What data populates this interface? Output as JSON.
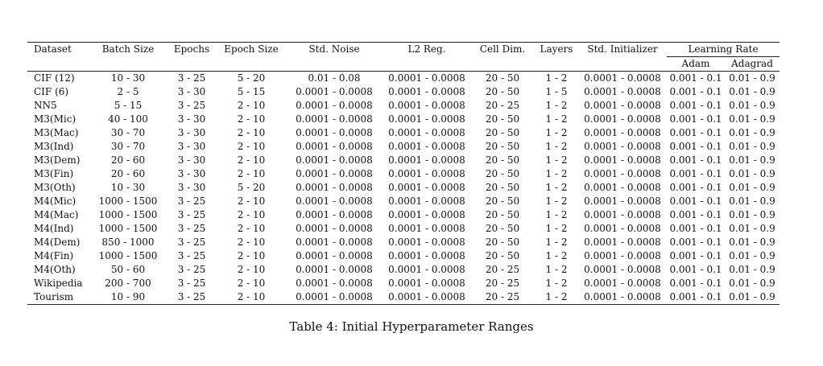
{
  "table": {
    "headers": {
      "dataset": "Dataset",
      "batch_size": "Batch Size",
      "epochs": "Epochs",
      "epoch_size": "Epoch Size",
      "std_noise": "Std. Noise",
      "l2_reg": "L2 Reg.",
      "cell_dim": "Cell Dim.",
      "layers": "Layers",
      "std_initializer": "Std. Initializer",
      "learning_rate": "Learning Rate",
      "adam": "Adam",
      "adagrad": "Adagrad"
    },
    "rows": [
      [
        "CIF (12)",
        "10 - 30",
        "3 - 25",
        "5 - 20",
        "0.01 - 0.08",
        "0.0001 - 0.0008",
        "20 - 50",
        "1 - 2",
        "0.0001 - 0.0008",
        "0.001 - 0.1",
        "0.01 - 0.9"
      ],
      [
        "CIF (6)",
        "2 - 5",
        "3 - 30",
        "5 - 15",
        "0.0001 - 0.0008",
        "0.0001 - 0.0008",
        "20 - 50",
        "1 - 5",
        "0.0001 - 0.0008",
        "0.001 - 0.1",
        "0.01 - 0.9"
      ],
      [
        "NN5",
        "5 - 15",
        "3 - 25",
        "2 - 10",
        "0.0001 - 0.0008",
        "0.0001 - 0.0008",
        "20 - 25",
        "1 - 2",
        "0.0001 - 0.0008",
        "0.001 - 0.1",
        "0.01 - 0.9"
      ],
      [
        "M3(Mic)",
        "40 - 100",
        "3 - 30",
        "2 - 10",
        "0.0001 - 0.0008",
        "0.0001 - 0.0008",
        "20 - 50",
        "1 - 2",
        "0.0001 - 0.0008",
        "0.001 - 0.1",
        "0.01 - 0.9"
      ],
      [
        "M3(Mac)",
        "30 - 70",
        "3 - 30",
        "2 - 10",
        "0.0001 - 0.0008",
        "0.0001 - 0.0008",
        "20 - 50",
        "1 - 2",
        "0.0001 - 0.0008",
        "0.001 - 0.1",
        "0.01 - 0.9"
      ],
      [
        "M3(Ind)",
        "30 - 70",
        "3 - 30",
        "2 - 10",
        "0.0001 - 0.0008",
        "0.0001 - 0.0008",
        "20 - 50",
        "1 - 2",
        "0.0001 - 0.0008",
        "0.001 - 0.1",
        "0.01 - 0.9"
      ],
      [
        "M3(Dem)",
        "20 - 60",
        "3 - 30",
        "2 - 10",
        "0.0001 - 0.0008",
        "0.0001 - 0.0008",
        "20 - 50",
        "1 - 2",
        "0.0001 - 0.0008",
        "0.001 - 0.1",
        "0.01 - 0.9"
      ],
      [
        "M3(Fin)",
        "20 - 60",
        "3 - 30",
        "2 - 10",
        "0.0001 - 0.0008",
        "0.0001 - 0.0008",
        "20 - 50",
        "1 - 2",
        "0.0001 - 0.0008",
        "0.001 - 0.1",
        "0.01 - 0.9"
      ],
      [
        "M3(Oth)",
        "10 - 30",
        "3 - 30",
        "5 - 20",
        "0.0001 - 0.0008",
        "0.0001 - 0.0008",
        "20 - 50",
        "1 - 2",
        "0.0001 - 0.0008",
        "0.001 - 0.1",
        "0.01 - 0.9"
      ],
      [
        "M4(Mic)",
        "1000 - 1500",
        "3 - 25",
        "2 - 10",
        "0.0001 - 0.0008",
        "0.0001 - 0.0008",
        "20 - 50",
        "1 - 2",
        "0.0001 - 0.0008",
        "0.001 - 0.1",
        "0.01 - 0.9"
      ],
      [
        "M4(Mac)",
        "1000 - 1500",
        "3 - 25",
        "2 - 10",
        "0.0001 - 0.0008",
        "0.0001 - 0.0008",
        "20 - 50",
        "1 - 2",
        "0.0001 - 0.0008",
        "0.001 - 0.1",
        "0.01 - 0.9"
      ],
      [
        "M4(Ind)",
        "1000 - 1500",
        "3 - 25",
        "2 - 10",
        "0.0001 - 0.0008",
        "0.0001 - 0.0008",
        "20 - 50",
        "1 - 2",
        "0.0001 - 0.0008",
        "0.001 - 0.1",
        "0.01 - 0.9"
      ],
      [
        "M4(Dem)",
        "850 - 1000",
        "3 - 25",
        "2 - 10",
        "0.0001 - 0.0008",
        "0.0001 - 0.0008",
        "20 - 50",
        "1 - 2",
        "0.0001 - 0.0008",
        "0.001 - 0.1",
        "0.01 - 0.9"
      ],
      [
        "M4(Fin)",
        "1000 - 1500",
        "3 - 25",
        "2 - 10",
        "0.0001 - 0.0008",
        "0.0001 - 0.0008",
        "20 - 50",
        "1 - 2",
        "0.0001 - 0.0008",
        "0.001 - 0.1",
        "0.01 - 0.9"
      ],
      [
        "M4(Oth)",
        "50 - 60",
        "3 - 25",
        "2 - 10",
        "0.0001 - 0.0008",
        "0.0001 - 0.0008",
        "20 - 25",
        "1 - 2",
        "0.0001 - 0.0008",
        "0.001 - 0.1",
        "0.01 - 0.9"
      ],
      [
        "Wikipedia",
        "200 - 700",
        "3 - 25",
        "2 - 10",
        "0.0001 - 0.0008",
        "0.0001 - 0.0008",
        "20 - 25",
        "1 - 2",
        "0.0001 - 0.0008",
        "0.001 - 0.1",
        "0.01 - 0.9"
      ],
      [
        "Tourism",
        "10 - 90",
        "3 - 25",
        "2 - 10",
        "0.0001 - 0.0008",
        "0.0001 - 0.0008",
        "20 - 25",
        "1 - 2",
        "0.0001 - 0.0008",
        "0.001 - 0.1",
        "0.01 - 0.9"
      ]
    ]
  },
  "caption": "Table 4: Initial Hyperparameter Ranges"
}
